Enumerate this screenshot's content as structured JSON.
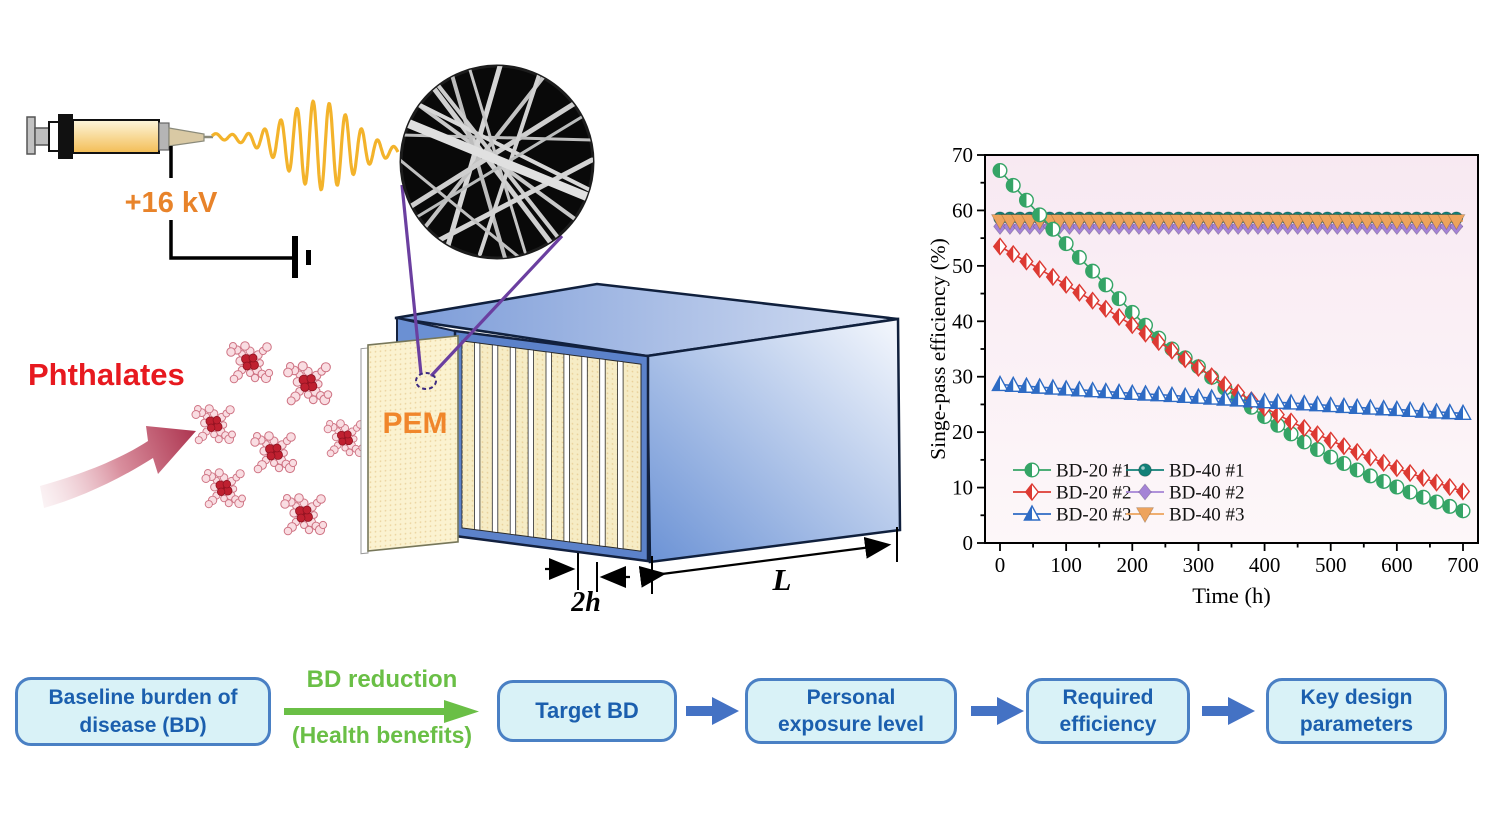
{
  "illustration": {
    "voltage_label": "+16 kV",
    "voltage_color": "#e8832a",
    "pollutant_label": "Phthalates",
    "pollutant_color": "#e7191f",
    "membrane_label": "PEM",
    "membrane_color": "#f0862b",
    "channel_width_label": "2h",
    "duct_length_label": "L",
    "molecules": [
      [
        250,
        362,
        1
      ],
      [
        308,
        383,
        1.05
      ],
      [
        214,
        424,
        0.95
      ],
      [
        274,
        452,
        1
      ],
      [
        345,
        438,
        0.9
      ],
      [
        224,
        488,
        0.95
      ],
      [
        304,
        514,
        1
      ]
    ]
  },
  "chart_data": {
    "type": "line",
    "title": "",
    "xlabel": "Time (h)",
    "ylabel": "Singe-pass efficiency (%)",
    "xlim": [
      0,
      700
    ],
    "ylim": [
      0,
      70
    ],
    "x_major_tick": 100,
    "x_minor_tick": 50,
    "y_major_tick": 10,
    "y_minor_tick": 5,
    "grid": false,
    "legend_position": "lower-left",
    "plot_bg_top": "#f8e9f2",
    "plot_bg_bottom": "#fdf7f9",
    "series": [
      {
        "name": "BD-20 #1",
        "color": "#35a466",
        "marker": "half-circle",
        "marker_step_h": 20,
        "x": [
          0,
          50,
          100,
          150,
          200,
          250,
          300,
          350,
          400,
          450,
          500,
          550,
          600,
          650,
          700
        ],
        "y": [
          67.2,
          60.5,
          54.0,
          47.8,
          41.6,
          35.8,
          31.8,
          27.0,
          22.8,
          18.9,
          15.5,
          12.6,
          10.1,
          7.8,
          5.8
        ]
      },
      {
        "name": "BD-20 #2",
        "color": "#dd3a33",
        "marker": "half-diamond",
        "marker_step_h": 20,
        "x": [
          0,
          50,
          100,
          150,
          200,
          250,
          300,
          350,
          400,
          450,
          500,
          550,
          600,
          650,
          700
        ],
        "y": [
          53.5,
          50.1,
          46.6,
          43.0,
          39.3,
          35.5,
          31.6,
          27.8,
          24.4,
          21.3,
          18.5,
          15.9,
          13.5,
          11.3,
          9.3
        ]
      },
      {
        "name": "BD-20 #3",
        "color": "#2e6bc4",
        "marker": "half-triangle-up",
        "marker_step_h": 20,
        "x": [
          0,
          50,
          100,
          150,
          200,
          250,
          300,
          350,
          400,
          450,
          500,
          550,
          600,
          650,
          700
        ],
        "y": [
          28.6,
          28.2,
          27.8,
          27.4,
          27.0,
          26.7,
          26.3,
          25.9,
          25.5,
          25.2,
          24.8,
          24.4,
          24.1,
          23.7,
          23.4
        ]
      },
      {
        "name": "BD-40 #1",
        "color": "#128078",
        "marker": "circle",
        "marker_step_h": 15,
        "y_constant": 58.6
      },
      {
        "name": "BD-40 #2",
        "color": "#a583d6",
        "marker": "diamond",
        "marker_step_h": 15,
        "y_constant": 57.1
      },
      {
        "name": "BD-40 #3",
        "color": "#eda35d",
        "marker": "triangle-down",
        "marker_step_h": 15,
        "y_constant": 58.1
      }
    ]
  },
  "flowchart": {
    "steps": [
      {
        "lines": [
          "Baseline burden of",
          "disease (BD)"
        ]
      },
      {
        "lines": [
          "Target BD",
          ""
        ]
      },
      {
        "lines": [
          "Personal",
          "exposure level"
        ]
      },
      {
        "lines": [
          "Required",
          "efficiency"
        ]
      },
      {
        "lines": [
          "Key design",
          "parameters"
        ]
      }
    ],
    "transition_top": "BD reduction",
    "transition_bottom": "(Health benefits)",
    "box_fill": "#d9f2f7",
    "box_border": "#4a80c4",
    "text_color": "#1b5fae",
    "green": "#6abf46",
    "arrow_blue": "#4472c4"
  }
}
